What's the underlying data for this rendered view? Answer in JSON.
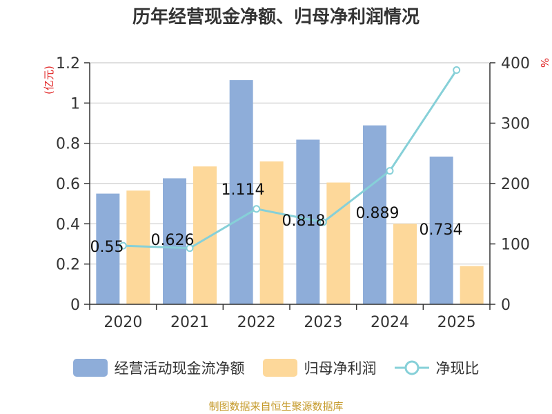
{
  "title": "历年经营现金净额、归母净利润情况",
  "source": "制图数据来自恒生聚源数据库",
  "colors": {
    "cashflow": "#8eadd9",
    "profit": "#fdd89a",
    "ratio": "#86d0d8",
    "axis_unit": "#e02020",
    "text": "#333333"
  },
  "chart_data": {
    "type": "bar",
    "title": "历年经营现金净额、归母净利润情况",
    "categories": [
      "2020",
      "2021",
      "2022",
      "2023",
      "2024",
      "2025"
    ],
    "ylabel": "(亿元)",
    "ylabel_right": "%",
    "ylim": [
      0,
      1.2
    ],
    "ylim_right": [
      0,
      400
    ],
    "yticks": [
      "0",
      "0.2",
      "0.4",
      "0.6",
      "0.8",
      "1",
      "1.2"
    ],
    "yticks_right": [
      "0",
      "100",
      "200",
      "300",
      "400"
    ],
    "series": [
      {
        "name": "经营活动现金流净额",
        "kind": "bar",
        "axis": "left",
        "values": [
          0.55,
          0.626,
          1.114,
          0.818,
          0.889,
          0.734
        ],
        "labels": [
          "0.55",
          "0.626",
          "1.114",
          "0.818",
          "0.889",
          "0.734"
        ]
      },
      {
        "name": "归母净利润",
        "kind": "bar",
        "axis": "left",
        "values": [
          0.565,
          0.685,
          0.71,
          0.605,
          0.4,
          0.19
        ]
      },
      {
        "name": "净现比",
        "kind": "line",
        "axis": "right",
        "values": [
          97,
          93,
          158,
          136,
          221,
          388
        ]
      }
    ],
    "legend_position": "bottom"
  }
}
